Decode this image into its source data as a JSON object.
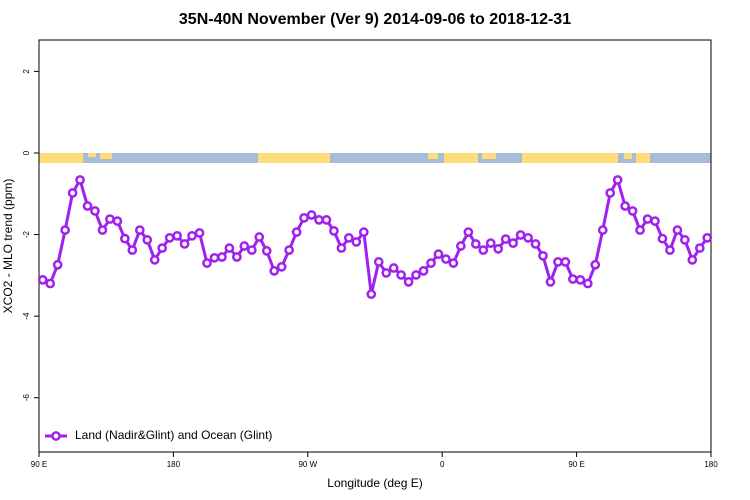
{
  "chart_data": {
    "type": "line",
    "title": "35N-40N November (Ver 9)   2014-09-06 to 2018-12-31",
    "x_label": "Longitude (deg E)",
    "y_label": "XCO2 - MLO trend (ppm)",
    "xlim": [
      90,
      540
    ],
    "xticks": [
      {
        "value": 90,
        "label": "90 E"
      },
      {
        "value": 180,
        "label": "180"
      },
      {
        "value": 270,
        "label": "90 W"
      },
      {
        "value": 360,
        "label": "0"
      },
      {
        "value": 450,
        "label": "90 E"
      },
      {
        "value": 540,
        "label": "180"
      }
    ],
    "ylim": [
      -7.33,
      2.77
    ],
    "yticks": [
      2,
      0,
      -2,
      -4,
      -6
    ],
    "legend": "bottomleft",
    "x": [
      92.5,
      97.5,
      102.5,
      107.5,
      112.5,
      117.5,
      122.5,
      127.5,
      132.5,
      137.5,
      142.5,
      147.5,
      152.5,
      157.5,
      162.5,
      167.5,
      172.5,
      177.5,
      182.5,
      187.5,
      192.5,
      197.5,
      202.5,
      207.5,
      212.5,
      217.5,
      222.5,
      227.5,
      232.5,
      237.5,
      242.5,
      247.5,
      252.5,
      257.5,
      262.5,
      267.5,
      272.5,
      277.5,
      282.5,
      287.5,
      292.5,
      297.5,
      302.5,
      307.5,
      312.5,
      317.5,
      322.5,
      327.5,
      332.5,
      337.5,
      342.5,
      347.5,
      352.5,
      357.5,
      362.5,
      367.5,
      372.5,
      377.5,
      382.5,
      387.5,
      392.5,
      397.5,
      402.5,
      407.5,
      412.5,
      417.5,
      422.5,
      427.5,
      432.5,
      437.5,
      442.5,
      447.5,
      452.5,
      457.5,
      462.5,
      467.5,
      472.5,
      477.5,
      482.5,
      487.5,
      492.5,
      497.5,
      502.5,
      507.5,
      512.5,
      517.5,
      522.5,
      527.5,
      532.5,
      537.5
    ],
    "series": [
      {
        "name": "Land (Nadir&Glint) and Ocean (Glint)",
        "color": "#a020f0",
        "values": [
          -3.11,
          -3.2,
          -2.74,
          -1.89,
          -0.98,
          -0.66,
          -1.3,
          -1.42,
          -1.89,
          -1.62,
          -1.67,
          -2.1,
          -2.38,
          -1.89,
          -2.13,
          -2.62,
          -2.33,
          -2.08,
          -2.03,
          -2.23,
          -2.03,
          -1.96,
          -2.7,
          -2.57,
          -2.55,
          -2.33,
          -2.55,
          -2.28,
          -2.38,
          -2.06,
          -2.4,
          -2.89,
          -2.79,
          -2.38,
          -1.94,
          -1.59,
          -1.52,
          -1.64,
          -1.64,
          -1.91,
          -2.33,
          -2.08,
          -2.18,
          -1.94,
          -3.46,
          -2.67,
          -2.94,
          -2.82,
          -2.99,
          -3.16,
          -2.99,
          -2.89,
          -2.7,
          -2.48,
          -2.6,
          -2.7,
          -2.28,
          -1.94,
          -2.23,
          -2.38,
          -2.21,
          -2.35,
          -2.11,
          -2.21,
          -2.01,
          -2.08,
          -2.23,
          -2.52,
          -3.16,
          -2.67,
          -2.67,
          -3.09,
          -3.11,
          -3.2,
          -2.74,
          -1.89,
          -0.98,
          -0.66,
          -1.3,
          -1.42,
          -1.89,
          -1.62,
          -1.67,
          -2.1,
          -2.38,
          -1.89,
          -2.13,
          -2.62,
          -2.33,
          -2.08
        ]
      }
    ]
  }
}
